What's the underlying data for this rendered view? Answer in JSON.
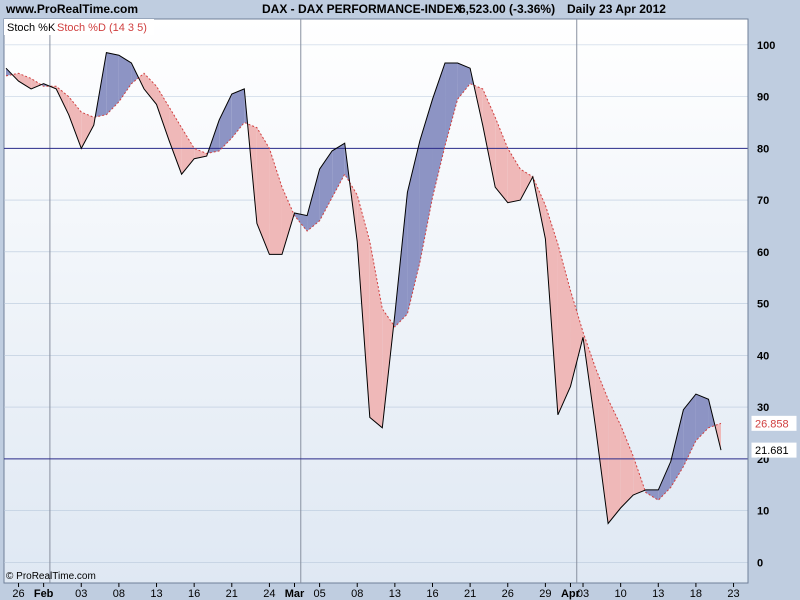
{
  "header": {
    "site": "www.ProRealTime.com",
    "title": "DAX - DAX PERFORMANCE-INDEX",
    "price": "6,523.00 (-3.36%)",
    "period": "Daily  23 Apr 2012"
  },
  "footer": {
    "copyright": "© ProRealTime.com"
  },
  "legend": {
    "k_label": "Stoch %K",
    "d_label": "Stoch %D (14 3 5)"
  },
  "colors": {
    "background": "#bfcde0",
    "plot_top": "#ffffff",
    "plot_bottom": "#dfe8f3",
    "k_line": "#000000",
    "d_line": "#d04040",
    "fill_k_above": "#8d94c4",
    "fill_d_above": "#efb8b8",
    "level_line": "#2b2b8a",
    "grid": "#b9c9dc",
    "vline": "#8890a0"
  },
  "chart_data": {
    "type": "line",
    "title": "",
    "xlabel": "",
    "ylabel": "",
    "ylim": [
      -4,
      105
    ],
    "levels": [
      20,
      80
    ],
    "y_ticks": [
      0,
      10,
      20,
      30,
      40,
      50,
      60,
      70,
      80,
      90,
      100
    ],
    "month_markers": [
      {
        "label": "Feb",
        "after_index": 3
      },
      {
        "label": "Mar",
        "after_index": 23
      },
      {
        "label": "Apr",
        "after_index": 45
      }
    ],
    "x_tick_labels": [
      {
        "label": "26",
        "index": 1
      },
      {
        "label": "Feb",
        "index": 3
      },
      {
        "label": "03",
        "index": 6
      },
      {
        "label": "08",
        "index": 9
      },
      {
        "label": "13",
        "index": 12
      },
      {
        "label": "16",
        "index": 15
      },
      {
        "label": "21",
        "index": 18
      },
      {
        "label": "24",
        "index": 21
      },
      {
        "label": "Mar",
        "index": 23
      },
      {
        "label": "05",
        "index": 25
      },
      {
        "label": "08",
        "index": 28
      },
      {
        "label": "13",
        "index": 31
      },
      {
        "label": "16",
        "index": 34
      },
      {
        "label": "21",
        "index": 37
      },
      {
        "label": "26",
        "index": 40
      },
      {
        "label": "29",
        "index": 43
      },
      {
        "label": "Apr",
        "index": 45
      },
      {
        "label": "03",
        "index": 46
      },
      {
        "label": "10",
        "index": 49
      },
      {
        "label": "13",
        "index": 52
      },
      {
        "label": "18",
        "index": 55
      },
      {
        "label": "23",
        "index": 58
      }
    ],
    "last_values": [
      {
        "label": "26.858",
        "value": 26.858,
        "series": "%D"
      },
      {
        "label": "21.681",
        "value": 21.681,
        "series": "%K"
      }
    ],
    "series": [
      {
        "name": "Stoch %K",
        "values": [
          95.5,
          93,
          91.5,
          92.5,
          91.5,
          86.5,
          80,
          84.5,
          98.5,
          98,
          96.5,
          91.5,
          88.5,
          81.5,
          75,
          78,
          78.5,
          85.5,
          90.5,
          91.5,
          65.5,
          59.5,
          59.5,
          67.5,
          67,
          76,
          79.5,
          81,
          62,
          28,
          26,
          48,
          71.5,
          81.5,
          89.5,
          96.5,
          96.5,
          95.5,
          84.5,
          72.5,
          69.5,
          70,
          74.5,
          62.5,
          28.5,
          34,
          43.5,
          26,
          7.5,
          10.5,
          13,
          14,
          14,
          19.5,
          29.5,
          32.5,
          31.5,
          21.681
        ]
      },
      {
        "name": "Stoch %D (14 3 5)",
        "values": [
          94,
          94.5,
          93.5,
          92,
          92,
          90,
          87,
          86,
          86.5,
          89,
          92.5,
          94.5,
          92,
          88,
          84,
          80,
          79,
          79.5,
          82,
          85,
          84,
          80,
          72.5,
          67,
          64,
          66,
          70.5,
          75,
          71,
          62,
          49,
          45.5,
          48,
          58,
          70.5,
          80.5,
          89.5,
          92.5,
          91.5,
          86,
          80,
          76,
          74.5,
          69,
          61.5,
          52.5,
          44.5,
          37.5,
          31.5,
          26.5,
          20.5,
          13.5,
          12,
          14.5,
          18.5,
          23.5,
          26,
          26.858
        ]
      }
    ]
  }
}
